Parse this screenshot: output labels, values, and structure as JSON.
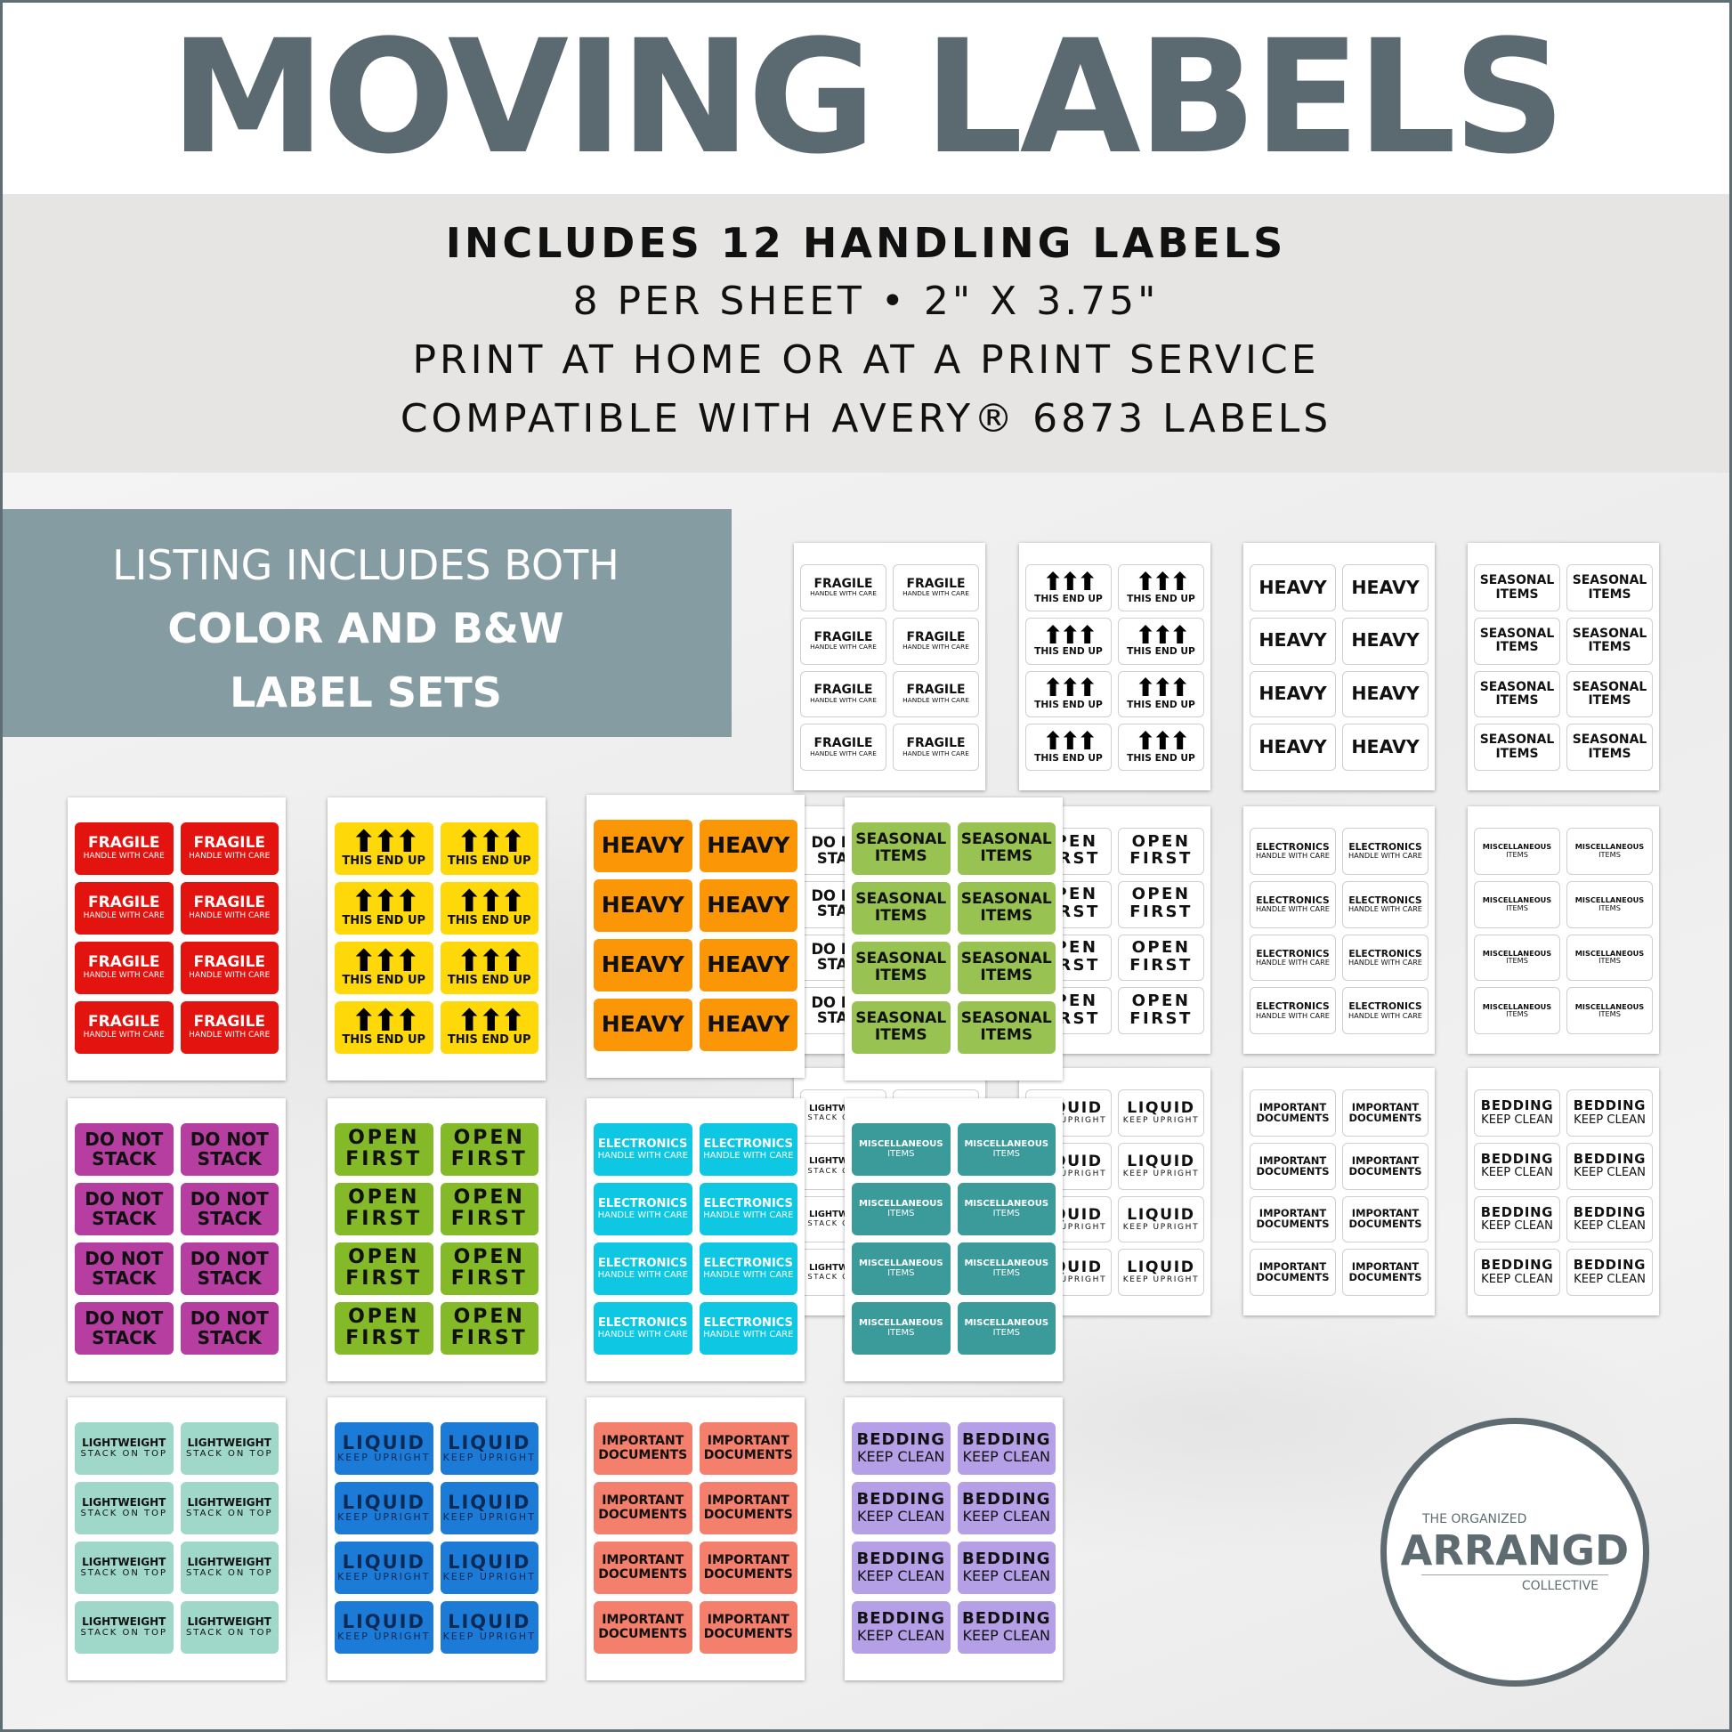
{
  "title": "MOVING LABELS",
  "info": {
    "line1": "INCLUDES 12 HANDLING LABELS",
    "line2": "8 PER SHEET • 2\" X 3.75\"",
    "line3": "PRINT AT HOME OR AT A PRINT SERVICE",
    "line4": "COMPATIBLE WITH AVERY® 6873 LABELS"
  },
  "banner": {
    "line1": "LISTING INCLUDES BOTH",
    "line2": "COLOR AND B&W",
    "line3": "LABEL SETS"
  },
  "logo": {
    "top": "THE ORGANIZED",
    "name": "ARRANGD",
    "bottom": "COLLECTIVE"
  },
  "colors": {
    "title": "#5b6a70",
    "band": "#e6e5e3",
    "banner": "#869ca3",
    "fragile": "#e3140f",
    "this_end_up": "#ffd80a",
    "heavy": "#fb9607",
    "seasonal": "#98c353",
    "do_not_stack": "#b63ea0",
    "open_first": "#84b928",
    "electronics": "#0dc7e3",
    "miscellaneous": "#3b9a9a",
    "lightweight": "#9fd7c8",
    "liquid": "#1d7bd8",
    "important": "#f47f6c",
    "bedding": "#b5a0e8"
  },
  "label_types": [
    {
      "key": "fragile",
      "main": "FRAGILE",
      "sub": "HANDLE WITH CARE"
    },
    {
      "key": "this_end_up",
      "main": "",
      "sub": "THIS END UP",
      "icon": "up-arrows-icon"
    },
    {
      "key": "heavy",
      "main": "HEAVY",
      "sub": ""
    },
    {
      "key": "seasonal",
      "main": "SEASONAL",
      "sub": "ITEMS"
    },
    {
      "key": "do_not_stack",
      "main": "DO NOT",
      "sub": "STACK"
    },
    {
      "key": "open_first",
      "main": "OPEN",
      "sub": "FIRST"
    },
    {
      "key": "electronics",
      "main": "ELECTRONICS",
      "sub": "HANDLE WITH CARE"
    },
    {
      "key": "miscellaneous",
      "main": "MISCELLANEOUS",
      "sub": "ITEMS"
    },
    {
      "key": "lightweight",
      "main": "LIGHTWEIGHT",
      "sub": "STACK ON TOP"
    },
    {
      "key": "liquid",
      "main": "LIQUID",
      "sub": "KEEP UPRIGHT"
    },
    {
      "key": "important",
      "main": "IMPORTANT",
      "sub": "DOCUMENTS"
    },
    {
      "key": "bedding",
      "main": "BEDDING",
      "sub": "KEEP CLEAN"
    }
  ]
}
